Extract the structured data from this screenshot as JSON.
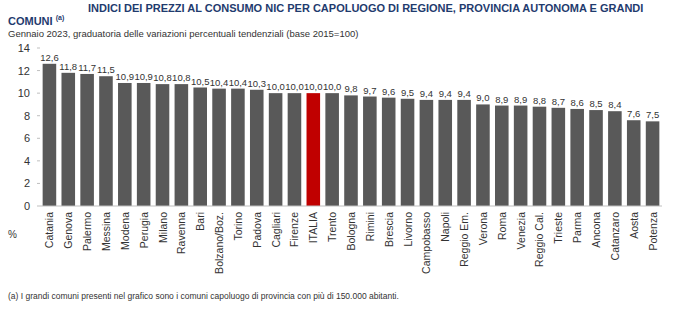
{
  "chart_data": {
    "type": "bar",
    "title": "INDICI DEI PREZZI AL CONSUMO NIC PER CAPOLUOGO DI REGIONE, PROVINCIA AUTONOMA E GRANDI COMUNI",
    "title_note": "(a)",
    "subtitle": "Gennaio 2023, graduatoria delle variazioni percentuali tendenziali (base 2015=100)",
    "ylabel": "%",
    "footnote": "(a)  I grandi comuni presenti nel grafico sono i comuni capoluogo di provincia con più di 150.000 abitanti.",
    "categories": [
      "Catania",
      "Genova",
      "Palermo",
      "Messina",
      "Modena",
      "Perugia",
      "Milano",
      "Ravenna",
      "Bari",
      "Bolzano/Boz.",
      "Torino",
      "Padova",
      "Cagliari",
      "Firenze",
      "ITALIA",
      "Trento",
      "Bologna",
      "Rimini",
      "Brescia",
      "Livorno",
      "Campobasso",
      "Napoli",
      "Reggio Em.",
      "Verona",
      "Roma",
      "Venezia",
      "Reggio Cal.",
      "Trieste",
      "Parma",
      "Ancona",
      "Catanzaro",
      "Aosta",
      "Potenza"
    ],
    "values": [
      12.6,
      11.8,
      11.7,
      11.5,
      10.9,
      10.9,
      10.8,
      10.8,
      10.5,
      10.4,
      10.4,
      10.3,
      10.0,
      10.0,
      10.0,
      10.0,
      9.8,
      9.7,
      9.6,
      9.5,
      9.4,
      9.4,
      9.4,
      9.0,
      8.9,
      8.9,
      8.8,
      8.7,
      8.6,
      8.5,
      8.4,
      7.6,
      7.5
    ],
    "value_labels": [
      "12,6",
      "11,8",
      "11,7",
      "11,5",
      "10,9",
      "10,9",
      "10,8",
      "10,8",
      "10,5",
      "10,4",
      "10,4",
      "10,3",
      "10,0",
      "10,0",
      "10,0",
      "10,0",
      "9,8",
      "9,7",
      "9,6",
      "9,5",
      "9,4",
      "9,4",
      "9,4",
      "9,0",
      "8,9",
      "8,9",
      "8,8",
      "8,7",
      "8,6",
      "8,5",
      "8,4",
      "7,6",
      "7,5"
    ],
    "colors": [
      "#595959",
      "#595959",
      "#595959",
      "#595959",
      "#595959",
      "#595959",
      "#595959",
      "#595959",
      "#595959",
      "#595959",
      "#595959",
      "#595959",
      "#595959",
      "#595959",
      "#c00000",
      "#595959",
      "#595959",
      "#595959",
      "#595959",
      "#595959",
      "#595959",
      "#595959",
      "#595959",
      "#595959",
      "#595959",
      "#595959",
      "#595959",
      "#595959",
      "#595959",
      "#595959",
      "#595959",
      "#595959",
      "#595959"
    ],
    "ylim": [
      0,
      14
    ],
    "yticks": [
      0,
      2,
      4,
      6,
      8,
      10,
      12,
      14
    ],
    "grid": false,
    "data_labels": true
  }
}
